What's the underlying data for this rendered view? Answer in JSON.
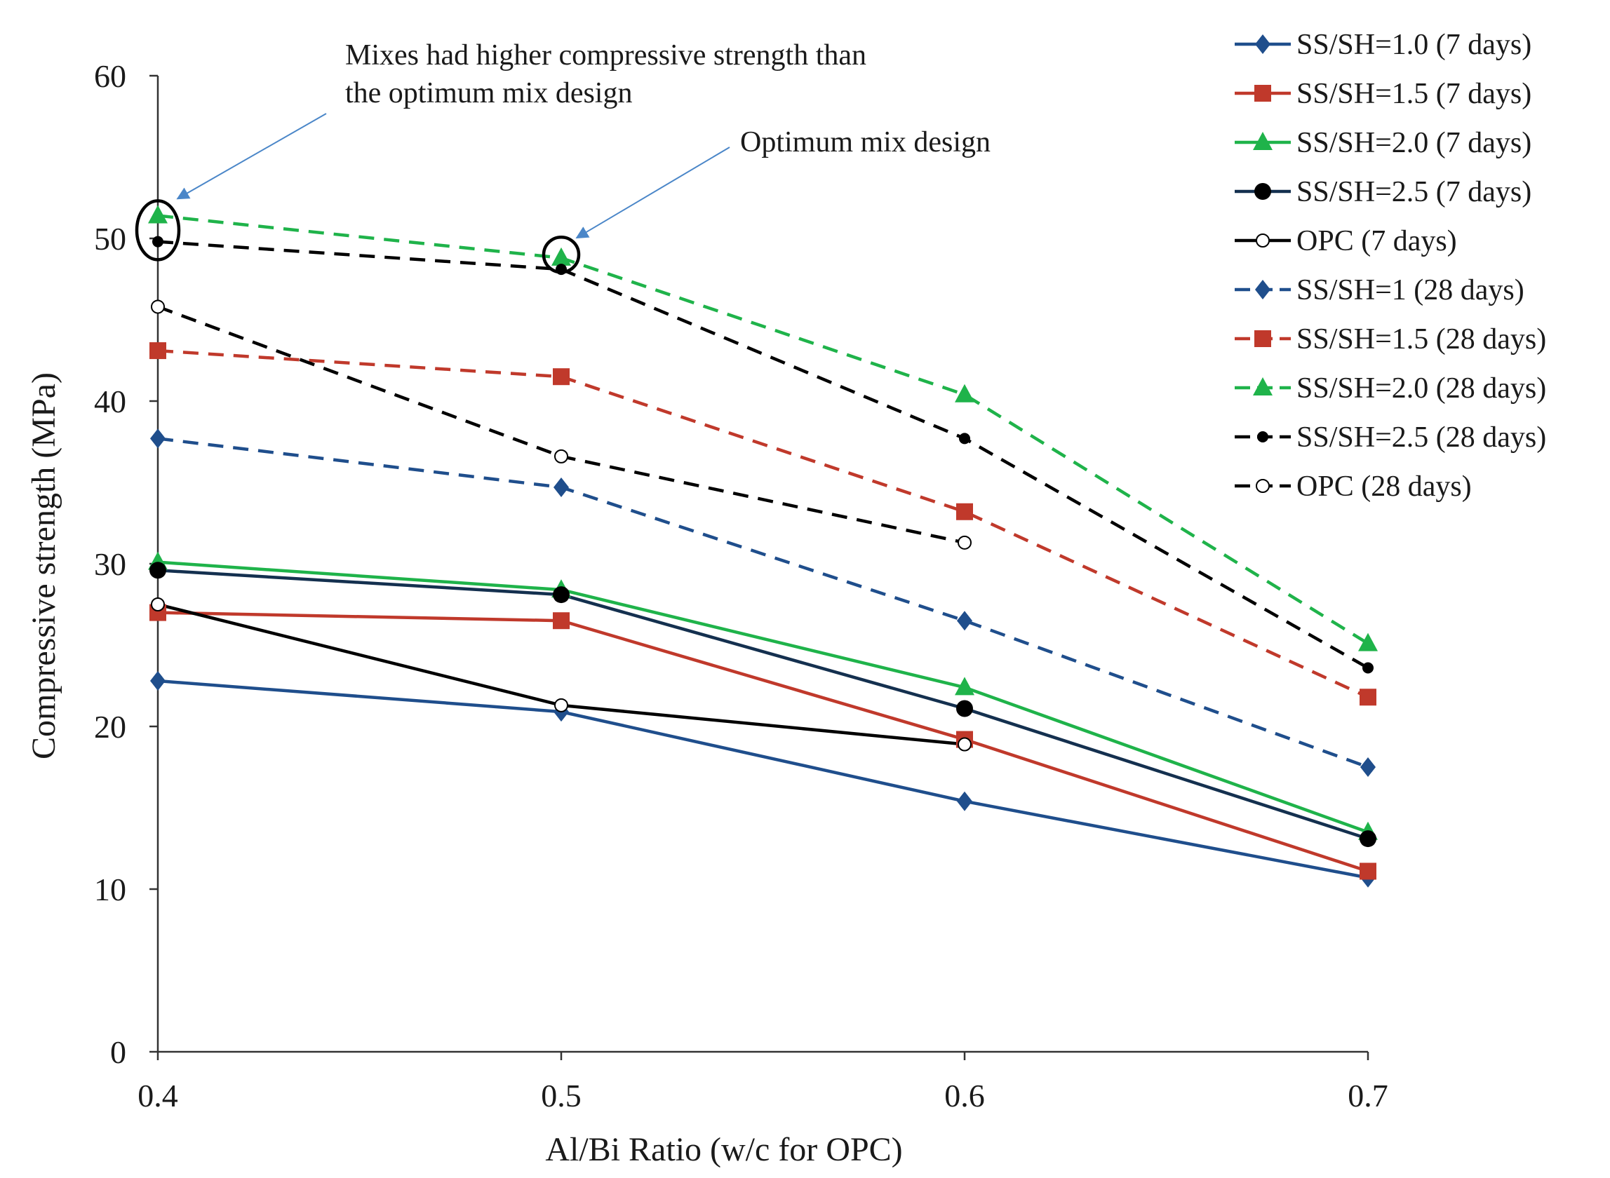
{
  "chart_data": {
    "type": "line",
    "xlabel": "Al/Bi Ratio (w/c for OPC)",
    "ylabel": "Compressive strength  (MPa)",
    "x": [
      0.4,
      0.5,
      0.6,
      0.7
    ],
    "x_tick_labels": [
      "0.4",
      "0.5",
      "0.6",
      "0.7"
    ],
    "xlim": [
      0.4,
      0.7
    ],
    "ylim": [
      0,
      60
    ],
    "y_ticks": [
      0,
      10,
      20,
      30,
      40,
      50,
      60
    ],
    "y_tick_labels": [
      "0",
      "10",
      "20",
      "30",
      "40",
      "50",
      "60"
    ],
    "grid": false,
    "legend_position": "top-right",
    "series": [
      {
        "name": "SS/SH=1.0 (7 days)",
        "color": "#1f4e8c",
        "dash": "solid",
        "marker": "diamond",
        "values": [
          22.8,
          20.9,
          15.4,
          10.7
        ]
      },
      {
        "name": "SS/SH=1.5 (7 days)",
        "color": "#c0392b",
        "dash": "solid",
        "marker": "square",
        "values": [
          27.0,
          26.5,
          19.2,
          11.1
        ]
      },
      {
        "name": "SS/SH=2.0 (7 days)",
        "color": "#1fb34a",
        "dash": "solid",
        "marker": "triangle",
        "values": [
          30.1,
          28.4,
          22.4,
          13.5
        ]
      },
      {
        "name": "SS/SH=2.5 (7 days)",
        "color": "#14304f",
        "dash": "solid",
        "marker": "circle",
        "values": [
          29.6,
          28.1,
          21.1,
          13.1
        ]
      },
      {
        "name": "OPC (7 days)",
        "color": "#000000",
        "dash": "solid",
        "marker": "open-circle",
        "values": [
          27.5,
          21.3,
          18.9,
          null
        ]
      },
      {
        "name": "SS/SH=1 (28 days)",
        "color": "#1f4e8c",
        "dash": "dashed",
        "marker": "diamond",
        "values": [
          37.7,
          34.7,
          26.5,
          17.5
        ]
      },
      {
        "name": "SS/SH=1.5 (28 days)",
        "color": "#c0392b",
        "dash": "dashed",
        "marker": "square",
        "values": [
          43.1,
          41.5,
          33.2,
          21.8
        ]
      },
      {
        "name": "SS/SH=2.0 (28 days)",
        "color": "#1fb34a",
        "dash": "dashed",
        "marker": "triangle",
        "values": [
          51.4,
          48.8,
          40.4,
          25.1
        ]
      },
      {
        "name": "SS/SH=2.5 (28 days)",
        "color": "#000000",
        "dash": "dashed",
        "marker": "small-circle",
        "values": [
          49.8,
          48.1,
          37.7,
          23.6
        ]
      },
      {
        "name": "OPC (28 days)",
        "color": "#000000",
        "dash": "dashed",
        "marker": "open-circle",
        "values": [
          45.8,
          36.6,
          31.3,
          null
        ]
      }
    ],
    "annotations": [
      {
        "text_lines": [
          "Mixes had higher compressive strength than",
          "the optimum mix design"
        ],
        "target_x": 0.4,
        "target_y": 50.5
      },
      {
        "text_lines": [
          "Optimum mix design"
        ],
        "target_x": 0.5,
        "target_y": 49.0
      }
    ]
  }
}
